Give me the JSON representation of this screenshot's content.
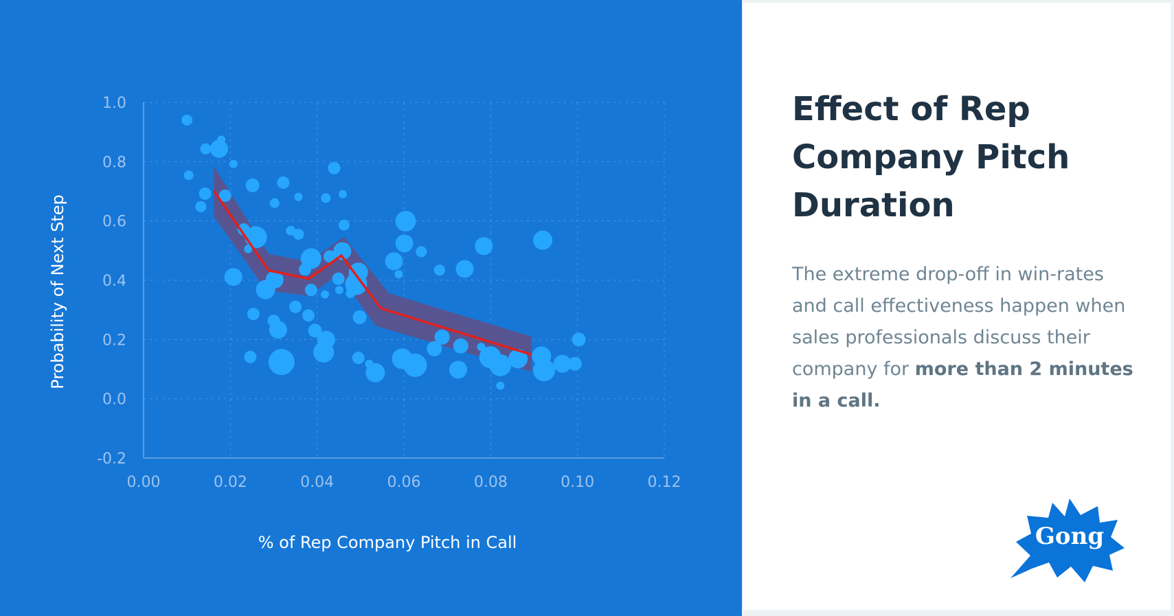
{
  "panel": {
    "title": "Effect of Rep Company Pitch Duration",
    "body_text": "The extreme drop-off in win-rates and call effectiveness happen when sales professionals discuss their company for ",
    "body_bold": "more than 2 minutes in a call.",
    "logo_text": "Gong"
  },
  "colors": {
    "background": "#1777d6",
    "points": "#27a6ff",
    "band": "#5e5189",
    "line": "#e0201e",
    "brand": "#0a74d8"
  },
  "chart_data": {
    "type": "scatter",
    "title": "",
    "xlabel": "% of Rep Company Pitch in Call",
    "ylabel": "Probability of Next Step",
    "xlim": [
      0,
      0.12
    ],
    "ylim": [
      -0.2,
      1.0
    ],
    "xticks": [
      "0.00",
      "0.02",
      "0.04",
      "0.06",
      "0.08",
      "0.10",
      "0.12"
    ],
    "yticks": [
      "1.0",
      "0.8",
      "0.6",
      "0.4",
      "0.2",
      "0.0",
      "-0.2"
    ],
    "grid": true,
    "points": [
      [
        0.01,
        0.94,
        8
      ],
      [
        0.0104,
        0.754,
        7
      ],
      [
        0.0143,
        0.843,
        8
      ],
      [
        0.0174,
        0.843,
        13
      ],
      [
        0.0179,
        0.874,
        6
      ],
      [
        0.0207,
        0.792,
        6
      ],
      [
        0.0142,
        0.692,
        9
      ],
      [
        0.0132,
        0.648,
        8
      ],
      [
        0.0188,
        0.685,
        9
      ],
      [
        0.0251,
        0.72,
        10
      ],
      [
        0.0322,
        0.729,
        9
      ],
      [
        0.0302,
        0.66,
        7
      ],
      [
        0.0357,
        0.681,
        6
      ],
      [
        0.042,
        0.677,
        7
      ],
      [
        0.0459,
        0.69,
        6
      ],
      [
        0.0439,
        0.778,
        9
      ],
      [
        0.0462,
        0.586,
        8
      ],
      [
        0.0231,
        0.571,
        9
      ],
      [
        0.0259,
        0.545,
        16
      ],
      [
        0.0241,
        0.505,
        6
      ],
      [
        0.0339,
        0.567,
        7
      ],
      [
        0.0357,
        0.555,
        8
      ],
      [
        0.0207,
        0.411,
        13
      ],
      [
        0.0281,
        0.368,
        14
      ],
      [
        0.0302,
        0.402,
        13
      ],
      [
        0.0386,
        0.473,
        15
      ],
      [
        0.0372,
        0.436,
        9
      ],
      [
        0.0386,
        0.367,
        9
      ],
      [
        0.0418,
        0.352,
        6
      ],
      [
        0.0429,
        0.48,
        9
      ],
      [
        0.0458,
        0.498,
        13
      ],
      [
        0.0449,
        0.405,
        9
      ],
      [
        0.0451,
        0.367,
        6
      ],
      [
        0.0495,
        0.427,
        14
      ],
      [
        0.049,
        0.387,
        16
      ],
      [
        0.0477,
        0.356,
        7
      ],
      [
        0.035,
        0.31,
        9
      ],
      [
        0.038,
        0.281,
        9
      ],
      [
        0.0253,
        0.286,
        9
      ],
      [
        0.03,
        0.263,
        9
      ],
      [
        0.031,
        0.233,
        13
      ],
      [
        0.0395,
        0.23,
        10
      ],
      [
        0.0421,
        0.199,
        13
      ],
      [
        0.0415,
        0.157,
        15
      ],
      [
        0.0246,
        0.141,
        9
      ],
      [
        0.0318,
        0.124,
        19
      ],
      [
        0.0498,
        0.275,
        10
      ],
      [
        0.0495,
        0.138,
        9
      ],
      [
        0.052,
        0.118,
        6
      ],
      [
        0.0534,
        0.088,
        14
      ],
      [
        0.0596,
        0.135,
        15
      ],
      [
        0.0626,
        0.113,
        17
      ],
      [
        0.0604,
        0.599,
        15
      ],
      [
        0.0601,
        0.524,
        13
      ],
      [
        0.064,
        0.496,
        8
      ],
      [
        0.0577,
        0.464,
        13
      ],
      [
        0.0588,
        0.42,
        6
      ],
      [
        0.0682,
        0.434,
        8
      ],
      [
        0.074,
        0.438,
        13
      ],
      [
        0.0784,
        0.515,
        13
      ],
      [
        0.092,
        0.535,
        14
      ],
      [
        0.0688,
        0.208,
        11
      ],
      [
        0.067,
        0.169,
        11
      ],
      [
        0.0731,
        0.178,
        11
      ],
      [
        0.0725,
        0.098,
        13
      ],
      [
        0.0778,
        0.175,
        6
      ],
      [
        0.0799,
        0.14,
        16
      ],
      [
        0.0822,
        0.113,
        16
      ],
      [
        0.0822,
        0.044,
        6
      ],
      [
        0.0863,
        0.135,
        14
      ],
      [
        0.0917,
        0.144,
        14
      ],
      [
        0.0923,
        0.096,
        16
      ],
      [
        0.0965,
        0.118,
        13
      ],
      [
        0.0994,
        0.118,
        10
      ],
      [
        0.1003,
        0.2,
        10
      ]
    ],
    "trend_line": [
      [
        0.0162,
        0.701
      ],
      [
        0.0288,
        0.433
      ],
      [
        0.038,
        0.405
      ],
      [
        0.0456,
        0.483
      ],
      [
        0.0547,
        0.305
      ],
      [
        0.0894,
        0.149
      ]
    ],
    "band_upper": [
      [
        0.0162,
        0.784
      ],
      [
        0.0288,
        0.489
      ],
      [
        0.038,
        0.462
      ],
      [
        0.0462,
        0.546
      ],
      [
        0.0565,
        0.356
      ],
      [
        0.0894,
        0.21
      ]
    ],
    "band_lower": [
      [
        0.0162,
        0.615
      ],
      [
        0.027,
        0.392
      ],
      [
        0.0288,
        0.365
      ],
      [
        0.038,
        0.347
      ],
      [
        0.045,
        0.42
      ],
      [
        0.0535,
        0.246
      ],
      [
        0.0894,
        0.091
      ]
    ]
  }
}
